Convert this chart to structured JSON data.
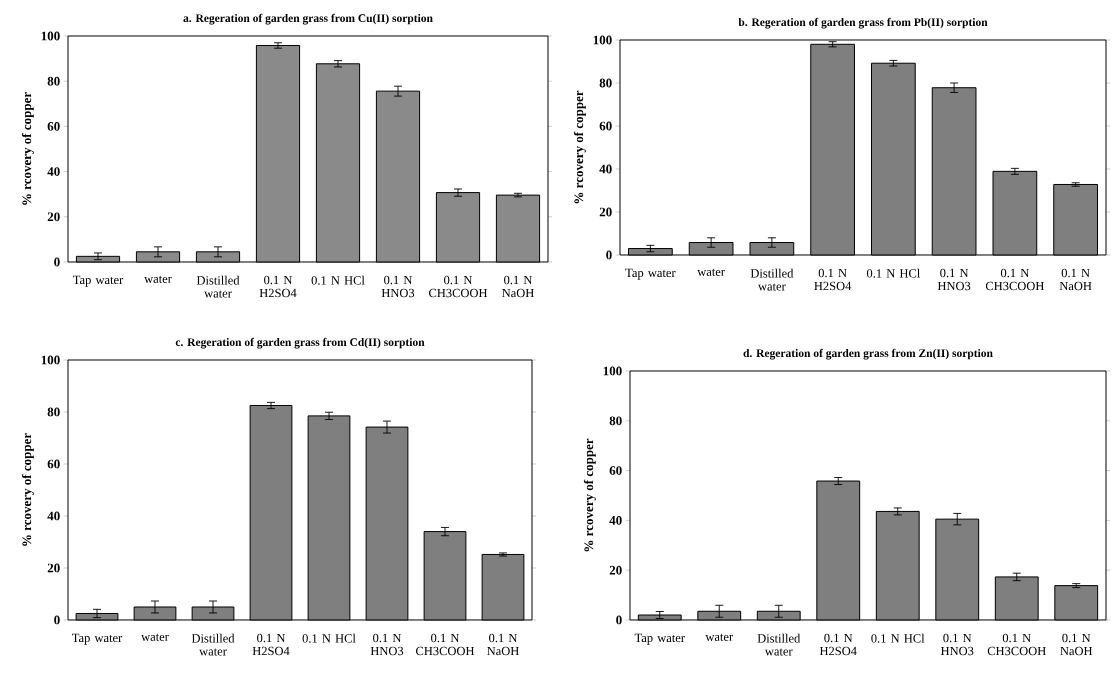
{
  "chart_data": [
    {
      "type": "bar",
      "title": "a. Regeration of garden grass from Cu(II) sorption",
      "ylabel": "% rcovery of copper",
      "categories": [
        "Tap water",
        "water",
        "Distilled water",
        "0.1 N H2SO4",
        "0.1 N HCl",
        "0.1 N HNO3",
        "0.1 N CH3COOH",
        "0.1 N NaOH"
      ],
      "values": [
        2.5,
        4.5,
        4.5,
        95.8,
        87.7,
        75.6,
        30.7,
        29.6
      ],
      "errors": [
        1.5,
        2.2,
        2.2,
        1.2,
        1.4,
        2.2,
        1.6,
        0.8
      ],
      "color": "#8a8a8a",
      "ylim": [
        0,
        100
      ],
      "yticks": [
        0,
        20,
        40,
        60,
        80,
        100
      ]
    },
    {
      "type": "bar",
      "title": "b. Regeration of garden grass from Pb(II) sorption",
      "ylabel": "% rcovery of copper",
      "categories": [
        "Tap water",
        "water",
        "Distilled water",
        "0.1 N H2SO4",
        "0.1 N HCl",
        "0.1 N HNO3",
        "0.1 N CH3COOH",
        "0.1 N NaOH"
      ],
      "values": [
        3.0,
        5.8,
        5.8,
        98.0,
        89.2,
        77.8,
        38.9,
        32.8
      ],
      "errors": [
        1.5,
        2.2,
        2.2,
        1.2,
        1.3,
        2.2,
        1.4,
        0.8
      ],
      "color": "#7f7f7f",
      "ylim": [
        0,
        100
      ],
      "yticks": [
        0,
        20,
        40,
        60,
        80,
        100
      ]
    },
    {
      "type": "bar",
      "title": "c. Regeration of garden grass from Cd(II) sorption",
      "ylabel": "% rcovery of copper",
      "categories": [
        "Tap water",
        "water",
        "Distilled water",
        "0.1 N H2SO4",
        "0.1 N HCl",
        "0.1 N HNO3",
        "0.1 N CH3COOH",
        "0.1 N NaOH"
      ],
      "values": [
        2.5,
        5.0,
        5.0,
        82.5,
        78.5,
        74.2,
        34.0,
        25.2
      ],
      "errors": [
        1.6,
        2.3,
        2.3,
        1.2,
        1.4,
        2.3,
        1.6,
        0.6
      ],
      "color": "#7f7f7f",
      "ylim": [
        0,
        100
      ],
      "yticks": [
        0,
        20,
        40,
        60,
        80,
        100
      ]
    },
    {
      "type": "bar",
      "title": "d. Regeration of garden grass from Zn(II) sorption",
      "ylabel": "% rcovery of copper",
      "categories": [
        "Tap water",
        "water",
        "Distilled water",
        "0.1 N H2SO4",
        "0.1 N HCl",
        "0.1 N HNO3",
        "0.1 N CH3COOH",
        "0.1 N NaOH"
      ],
      "values": [
        2.0,
        3.5,
        3.5,
        55.8,
        43.6,
        40.5,
        17.3,
        13.8
      ],
      "errors": [
        1.4,
        2.4,
        2.4,
        1.4,
        1.4,
        2.3,
        1.5,
        0.8
      ],
      "color": "#7f7f7f",
      "ylim": [
        0,
        100
      ],
      "yticks": [
        0,
        20,
        40,
        60,
        80,
        100
      ]
    }
  ]
}
